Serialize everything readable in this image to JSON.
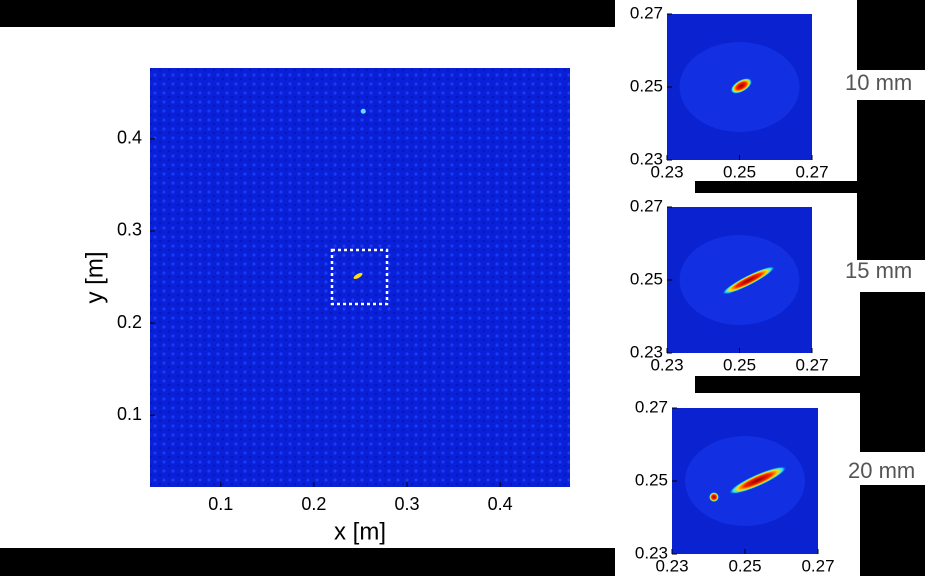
{
  "chart_data": [
    {
      "type": "heatmap",
      "xlabel": "x [m]",
      "ylabel": "y [m]",
      "xlim": [
        0.024,
        0.475
      ],
      "ylim": [
        0.022,
        0.477
      ],
      "xticks": [
        0.1,
        0.2,
        0.3,
        0.4
      ],
      "yticks": [
        0.1,
        0.2,
        0.3,
        0.4
      ]
    },
    {
      "type": "heatmap",
      "annotation": "10 mm",
      "xlim": [
        0.23,
        0.27
      ],
      "ylim": [
        0.23,
        0.27
      ],
      "xticks": [
        0.23,
        0.25,
        0.27
      ],
      "yticks": [
        0.23,
        0.25,
        0.27
      ]
    },
    {
      "type": "heatmap",
      "annotation": "15 mm",
      "xlim": [
        0.23,
        0.27
      ],
      "ylim": [
        0.23,
        0.27
      ],
      "xticks": [
        0.23,
        0.25,
        0.27
      ],
      "yticks": [
        0.23,
        0.25,
        0.27
      ]
    },
    {
      "type": "heatmap",
      "annotation": "20 mm",
      "xlim": [
        0.23,
        0.27
      ],
      "ylim": [
        0.23,
        0.27
      ],
      "xticks": [
        0.23,
        0.25,
        0.27
      ],
      "yticks": [
        0.23,
        0.25,
        0.27
      ]
    }
  ]
}
